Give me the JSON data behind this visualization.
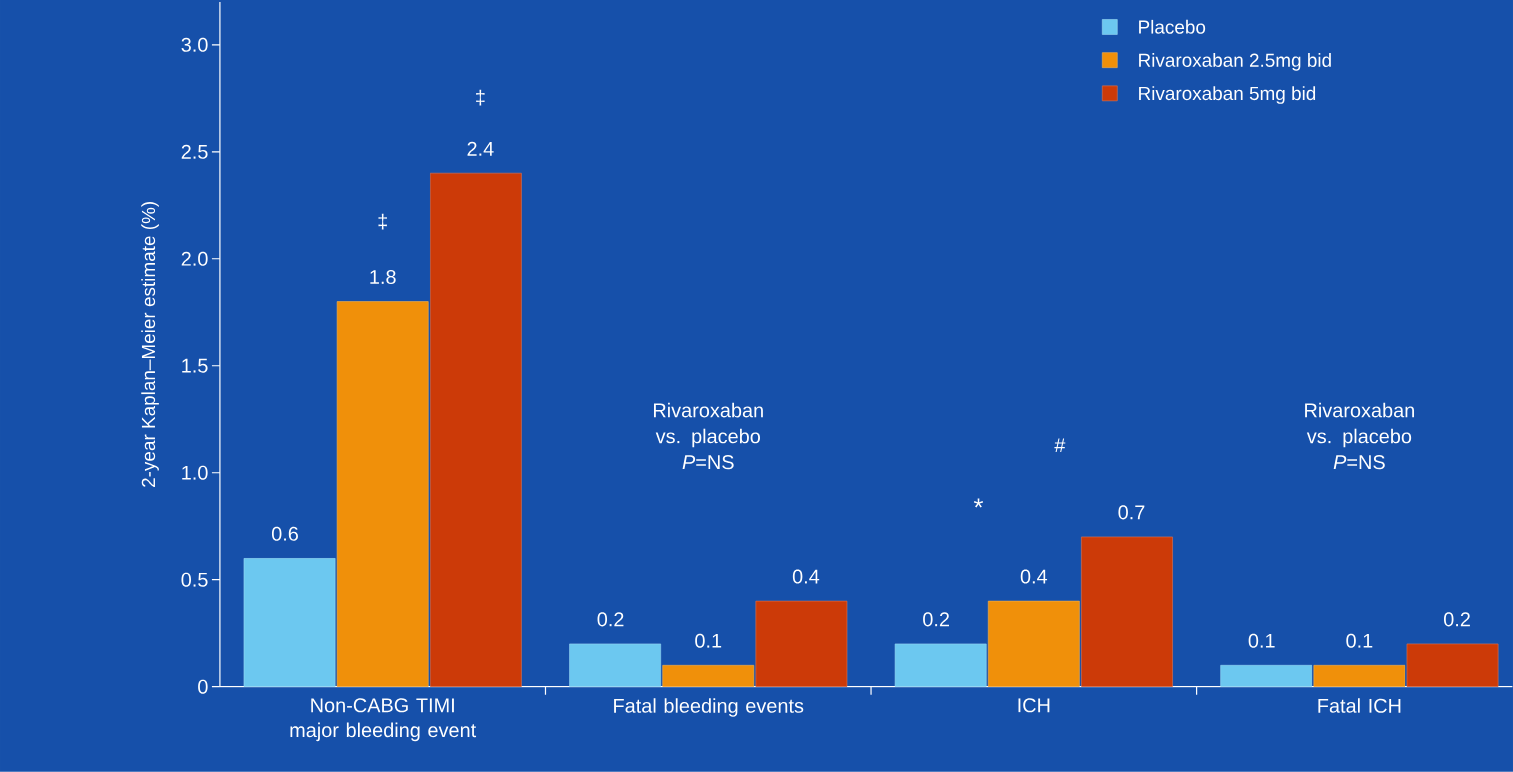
{
  "chart_data": {
    "type": "bar",
    "ylabel": "2-year Kaplan–Meier estimate (%)",
    "categories": [
      "Non-CABG TIMI major bleeding event",
      "Fatal bleeding events",
      "ICH",
      "Fatal ICH"
    ],
    "series": [
      {
        "name": "Placebo",
        "color": "#6cc8f0",
        "values": [
          0.6,
          0.2,
          0.2,
          0.1
        ]
      },
      {
        "name": "Rivaroxaban 2.5mg bid",
        "color": "#f0900a",
        "values": [
          1.8,
          0.1,
          0.4,
          0.1
        ]
      },
      {
        "name": "Rivaroxaban 5mg bid",
        "color": "#cc3a08",
        "values": [
          2.4,
          0.4,
          0.7,
          0.2
        ]
      }
    ],
    "ylim": [
      0,
      3.2
    ],
    "yticks": [
      0,
      0.5,
      {
        "value": 1,
        "label": "1.0"
      },
      1.5,
      {
        "value": 2,
        "label": "2.0"
      },
      2.5,
      {
        "value": 3,
        "label": "3.0"
      }
    ],
    "data_labels": true,
    "legend": "top right",
    "grid": false,
    "annotations": [
      "‡",
      "‡",
      "Rivaroxaban vs. placebo *P*=NS",
      "*",
      "#",
      "Rivaroxaban vs. placebo *P*=NS"
    ]
  }
}
